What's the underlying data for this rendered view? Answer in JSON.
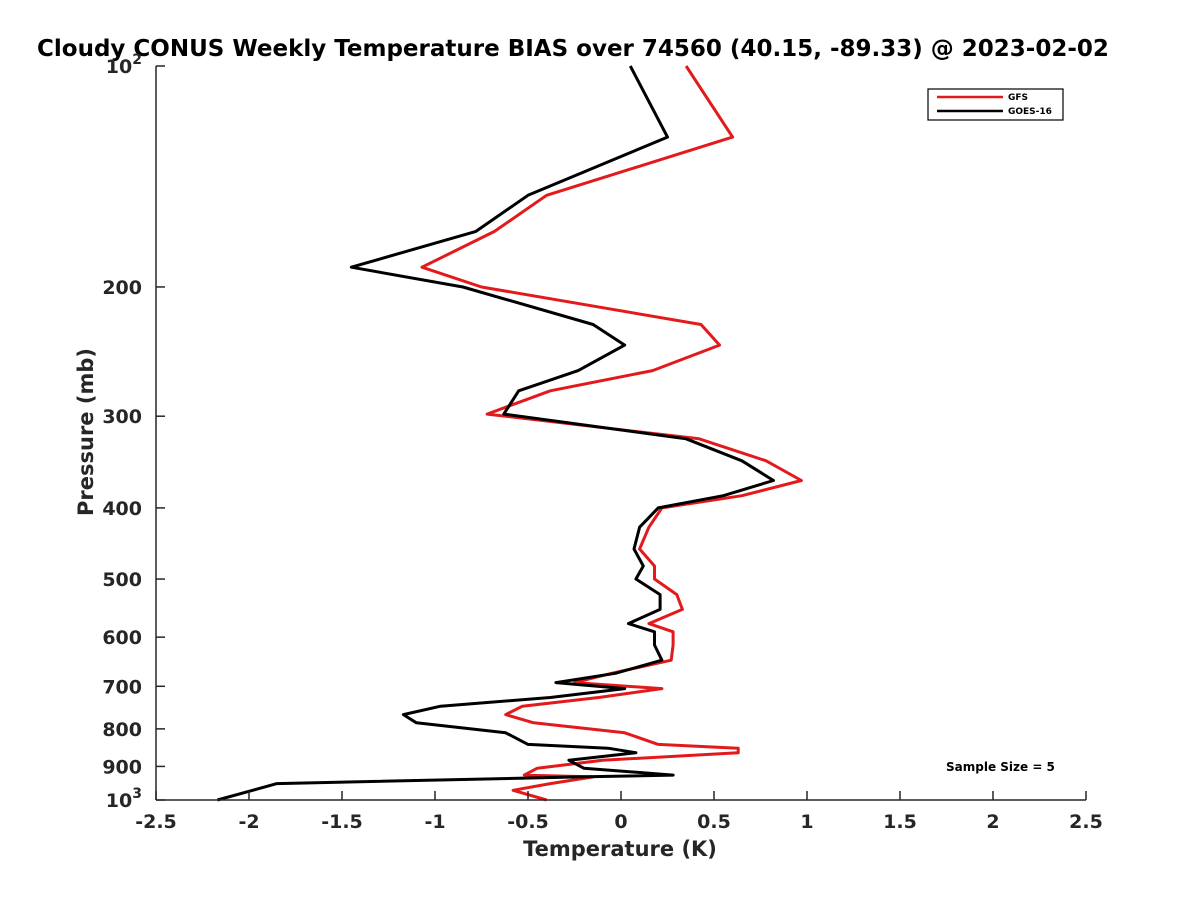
{
  "chart_data": {
    "type": "line",
    "title": "Cloudy CONUS Weekly Temperature BIAS over 74560 (40.15, -89.33) @ 2023-02-02",
    "xlabel": "Temperature (K)",
    "ylabel": "Pressure (mb)",
    "xlim": [
      -2.5,
      2.5
    ],
    "ylim": [
      100,
      1000
    ],
    "y_scale": "log",
    "y_reversed": true,
    "grid": false,
    "legend_position": "top-right",
    "x_ticks": [
      "-2.5",
      "-2",
      "-1.5",
      "-1",
      "-0.5",
      "0",
      "0.5",
      "1",
      "1.5",
      "2",
      "2.5"
    ],
    "x_tick_values": [
      -2.5,
      -2,
      -1.5,
      -1,
      -0.5,
      0,
      0.5,
      1,
      1.5,
      2,
      2.5
    ],
    "y_ticks": [
      {
        "value": 100,
        "base": "10",
        "exp": "2"
      },
      {
        "value": 200,
        "label": "200"
      },
      {
        "value": 300,
        "label": "300"
      },
      {
        "value": 400,
        "label": "400"
      },
      {
        "value": 500,
        "label": "500"
      },
      {
        "value": 600,
        "label": "600"
      },
      {
        "value": 700,
        "label": "700"
      },
      {
        "value": 800,
        "label": "800"
      },
      {
        "value": 900,
        "label": "900"
      },
      {
        "value": 1000,
        "base": "10",
        "exp": "3"
      }
    ],
    "annotation": "Sample Size = 5",
    "series": [
      {
        "name": "GFS",
        "color": "#e31a1c",
        "points": [
          [
            0.35,
            100
          ],
          [
            0.6,
            125
          ],
          [
            -0.4,
            150
          ],
          [
            -0.68,
            168
          ],
          [
            -1.07,
            188
          ],
          [
            -0.75,
            200
          ],
          [
            0.43,
            225
          ],
          [
            0.53,
            240
          ],
          [
            0.17,
            260
          ],
          [
            -0.38,
            277
          ],
          [
            -0.72,
            298
          ],
          [
            0.42,
            322
          ],
          [
            0.78,
            345
          ],
          [
            0.97,
            367
          ],
          [
            0.65,
            385
          ],
          [
            0.22,
            400
          ],
          [
            0.15,
            425
          ],
          [
            0.1,
            455
          ],
          [
            0.18,
            480
          ],
          [
            0.18,
            500
          ],
          [
            0.3,
            525
          ],
          [
            0.33,
            550
          ],
          [
            0.15,
            575
          ],
          [
            0.28,
            590
          ],
          [
            0.28,
            615
          ],
          [
            0.27,
            645
          ],
          [
            -0.05,
            672
          ],
          [
            -0.25,
            692
          ],
          [
            0.22,
            705
          ],
          [
            -0.12,
            725
          ],
          [
            -0.53,
            745
          ],
          [
            -0.62,
            765
          ],
          [
            -0.47,
            785
          ],
          [
            0.02,
            810
          ],
          [
            0.2,
            840
          ],
          [
            0.63,
            850
          ],
          [
            0.63,
            862
          ],
          [
            -0.1,
            883
          ],
          [
            -0.45,
            905
          ],
          [
            -0.52,
            925
          ],
          [
            -0.15,
            930
          ],
          [
            -0.38,
            950
          ],
          [
            -0.58,
            970
          ],
          [
            -0.4,
            1000
          ]
        ]
      },
      {
        "name": "GOES-16",
        "color": "#000000",
        "points": [
          [
            0.05,
            100
          ],
          [
            0.25,
            125
          ],
          [
            -0.5,
            150
          ],
          [
            -0.78,
            168
          ],
          [
            -1.45,
            188
          ],
          [
            -0.85,
            200
          ],
          [
            -0.15,
            225
          ],
          [
            0.02,
            240
          ],
          [
            -0.23,
            260
          ],
          [
            -0.55,
            277
          ],
          [
            -0.63,
            298
          ],
          [
            0.35,
            322
          ],
          [
            0.65,
            345
          ],
          [
            0.82,
            367
          ],
          [
            0.55,
            385
          ],
          [
            0.2,
            400
          ],
          [
            0.1,
            425
          ],
          [
            0.07,
            455
          ],
          [
            0.12,
            480
          ],
          [
            0.08,
            500
          ],
          [
            0.21,
            525
          ],
          [
            0.21,
            550
          ],
          [
            0.04,
            575
          ],
          [
            0.18,
            590
          ],
          [
            0.18,
            615
          ],
          [
            0.22,
            645
          ],
          [
            -0.03,
            672
          ],
          [
            -0.35,
            692
          ],
          [
            0.02,
            705
          ],
          [
            -0.38,
            725
          ],
          [
            -0.97,
            745
          ],
          [
            -1.17,
            765
          ],
          [
            -1.1,
            785
          ],
          [
            -0.62,
            810
          ],
          [
            -0.5,
            840
          ],
          [
            -0.07,
            850
          ],
          [
            0.08,
            862
          ],
          [
            -0.28,
            883
          ],
          [
            -0.2,
            905
          ],
          [
            0.28,
            925
          ],
          [
            -0.22,
            930
          ],
          [
            -1.85,
            950
          ],
          [
            -1.98,
            970
          ],
          [
            -2.17,
            1000
          ]
        ]
      }
    ]
  }
}
